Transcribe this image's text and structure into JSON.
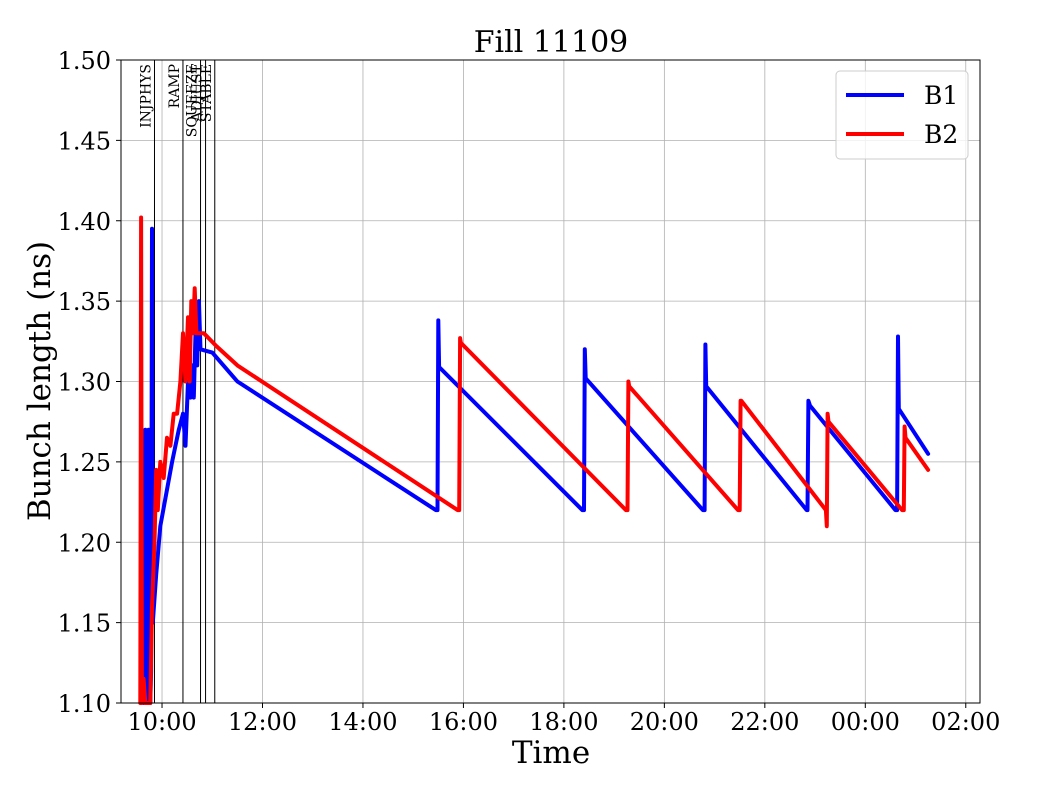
{
  "chart_data": {
    "type": "line",
    "title": "Fill 11109",
    "xlabel": "Time",
    "ylabel": "Bunch length (ns)",
    "xlim": [
      "09:11",
      "02:17"
    ],
    "ylim": [
      1.1,
      1.5
    ],
    "grid": true,
    "legend_position": "top-right",
    "x_ticks": [
      "10:00",
      "12:00",
      "14:00",
      "16:00",
      "18:00",
      "20:00",
      "22:00",
      "00:00",
      "02:00"
    ],
    "y_ticks": [
      "1.10",
      "1.15",
      "1.20",
      "1.25",
      "1.30",
      "1.35",
      "1.40",
      "1.45",
      "1.50"
    ],
    "phase_markers": [
      {
        "label": "INJPHYS",
        "time": "09:51"
      },
      {
        "label": "RAMP",
        "time": "10:25"
      },
      {
        "label": "SQUEEZE",
        "time": "10:46"
      },
      {
        "label": "ADJUST",
        "time": "10:52"
      },
      {
        "label": "STABLE",
        "time": "11:03"
      }
    ],
    "series": [
      {
        "name": "B1",
        "color": "#0000ff",
        "points": [
          [
            "09:38",
            1.1
          ],
          [
            "09:40",
            1.27
          ],
          [
            "09:42",
            1.1
          ],
          [
            "09:44",
            1.27
          ],
          [
            "09:46",
            1.1
          ],
          [
            "09:47",
            1.12
          ],
          [
            "09:48",
            1.395
          ],
          [
            "09:49",
            1.15
          ],
          [
            "09:53",
            1.18
          ],
          [
            "09:58",
            1.21
          ],
          [
            "10:05",
            1.23
          ],
          [
            "10:12",
            1.25
          ],
          [
            "10:20",
            1.27
          ],
          [
            "10:25",
            1.28
          ],
          [
            "10:28",
            1.26
          ],
          [
            "10:31",
            1.3
          ],
          [
            "10:34",
            1.29
          ],
          [
            "10:36",
            1.31
          ],
          [
            "10:38",
            1.29
          ],
          [
            "10:40",
            1.33
          ],
          [
            "10:42",
            1.31
          ],
          [
            "10:44",
            1.35
          ],
          [
            "10:46",
            1.32
          ],
          [
            "11:00",
            1.318
          ],
          [
            "11:30",
            1.3
          ],
          [
            "15:27",
            1.22
          ],
          [
            "15:29",
            1.22
          ],
          [
            "15:30",
            1.338
          ],
          [
            "15:31",
            1.309
          ],
          [
            "18:22",
            1.22
          ],
          [
            "18:24",
            1.22
          ],
          [
            "18:25",
            1.32
          ],
          [
            "18:26",
            1.302
          ],
          [
            "20:46",
            1.22
          ],
          [
            "20:48",
            1.22
          ],
          [
            "20:49",
            1.323
          ],
          [
            "20:50",
            1.297
          ],
          [
            "22:50",
            1.22
          ],
          [
            "22:51",
            1.22
          ],
          [
            "22:52",
            1.288
          ],
          [
            "22:54",
            1.285
          ],
          [
            "00:36",
            1.22
          ],
          [
            "00:38",
            1.22
          ],
          [
            "00:39",
            1.328
          ],
          [
            "00:40",
            1.283
          ],
          [
            "01:15",
            1.255
          ]
        ]
      },
      {
        "name": "B2",
        "color": "#ff0000",
        "points": [
          [
            "09:34",
            1.1
          ],
          [
            "09:35",
            1.402
          ],
          [
            "09:36",
            1.1
          ],
          [
            "09:38",
            1.115
          ],
          [
            "09:40",
            1.1
          ],
          [
            "09:43",
            1.1
          ],
          [
            "09:46",
            1.1
          ],
          [
            "09:48",
            1.16
          ],
          [
            "09:51",
            1.2
          ],
          [
            "09:53",
            1.245
          ],
          [
            "09:55",
            1.22
          ],
          [
            "09:58",
            1.25
          ],
          [
            "10:02",
            1.24
          ],
          [
            "10:06",
            1.265
          ],
          [
            "10:10",
            1.26
          ],
          [
            "10:14",
            1.28
          ],
          [
            "10:18",
            1.28
          ],
          [
            "10:22",
            1.3
          ],
          [
            "10:25",
            1.33
          ],
          [
            "10:28",
            1.3
          ],
          [
            "10:31",
            1.34
          ],
          [
            "10:33",
            1.3
          ],
          [
            "10:35",
            1.35
          ],
          [
            "10:37",
            1.33
          ],
          [
            "10:39",
            1.358
          ],
          [
            "10:41",
            1.33
          ],
          [
            "10:50",
            1.33
          ],
          [
            "11:05",
            1.322
          ],
          [
            "11:30",
            1.31
          ],
          [
            "15:53",
            1.22
          ],
          [
            "15:55",
            1.22
          ],
          [
            "15:56",
            1.327
          ],
          [
            "15:57",
            1.324
          ],
          [
            "19:14",
            1.22
          ],
          [
            "19:16",
            1.22
          ],
          [
            "19:17",
            1.3
          ],
          [
            "19:18",
            1.297
          ],
          [
            "21:28",
            1.22
          ],
          [
            "21:30",
            1.22
          ],
          [
            "21:31",
            1.288
          ],
          [
            "21:32",
            1.288
          ],
          [
            "23:13",
            1.22
          ],
          [
            "23:14",
            1.21
          ],
          [
            "23:15",
            1.28
          ],
          [
            "23:16",
            1.275
          ],
          [
            "00:44",
            1.22
          ],
          [
            "00:46",
            1.22
          ],
          [
            "00:47",
            1.272
          ],
          [
            "00:48",
            1.265
          ],
          [
            "01:15",
            1.245
          ]
        ]
      }
    ]
  }
}
